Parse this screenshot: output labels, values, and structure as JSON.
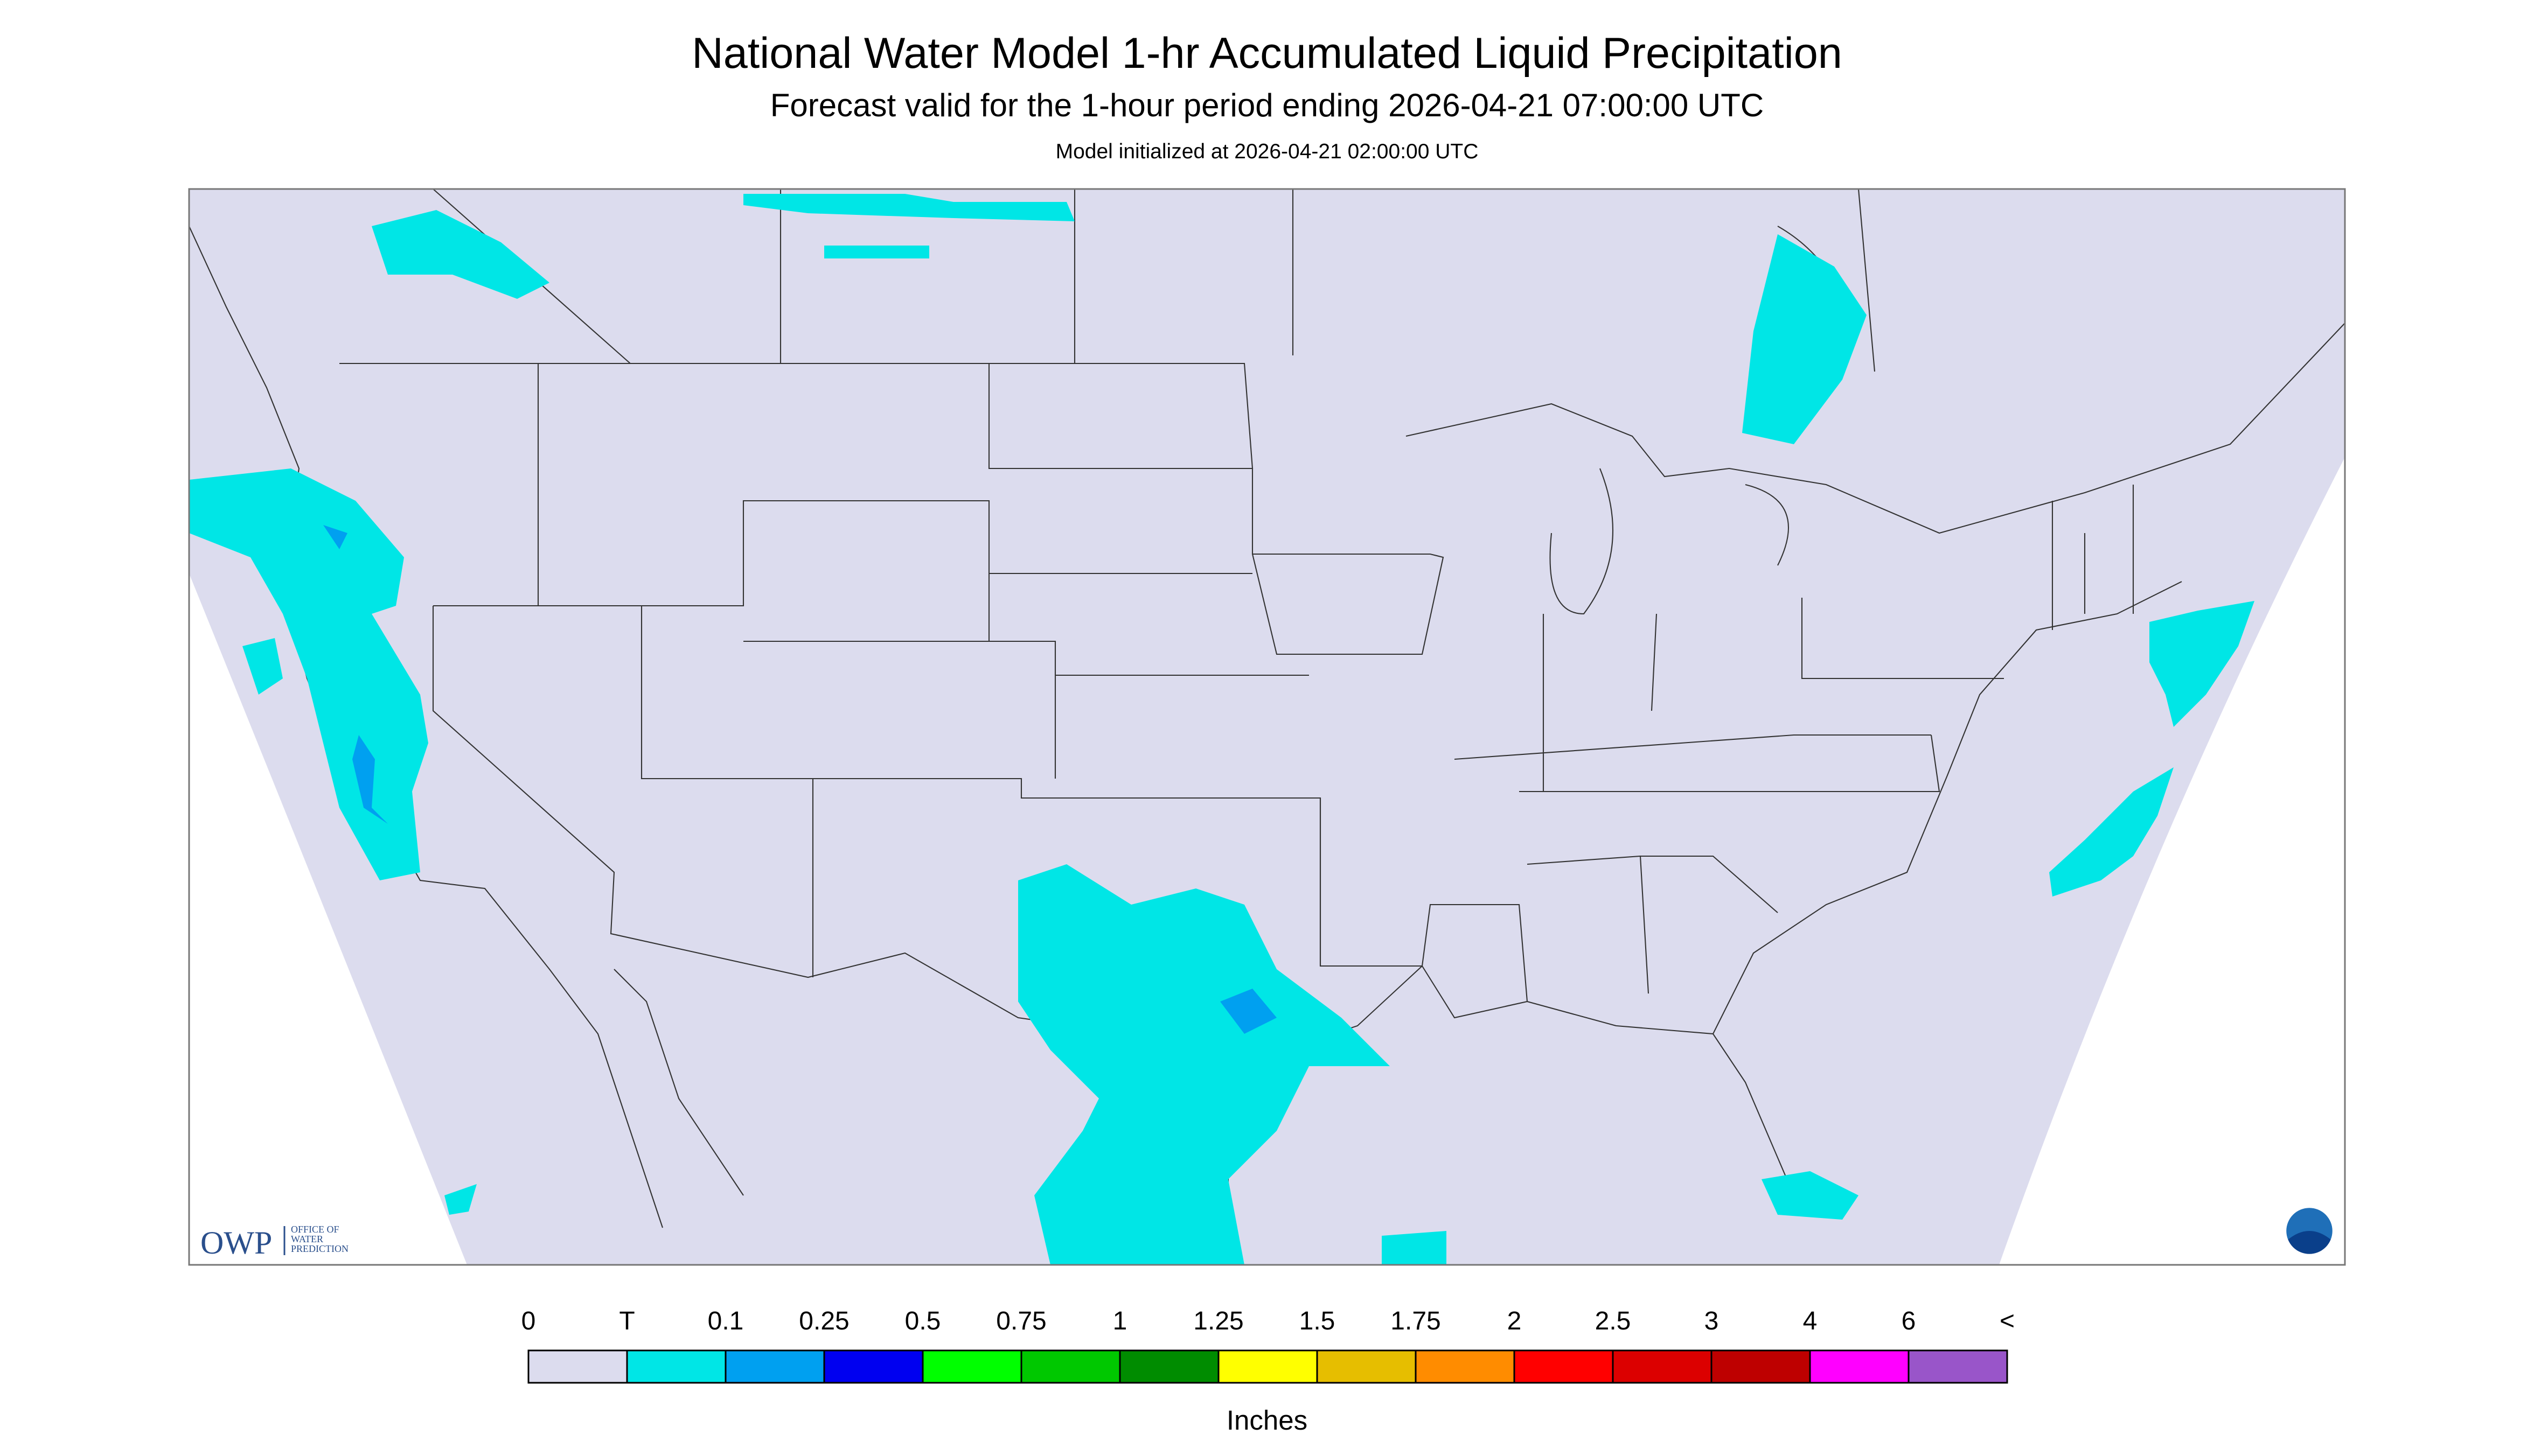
{
  "header": {
    "title": "National Water Model 1-hr Accumulated Liquid Precipitation",
    "subtitle": "Forecast valid for the 1-hour period ending 2026-04-21 07:00:00 UTC",
    "initialized": "Model initialized at 2026-04-21 02:00:00 UTC"
  },
  "logo": {
    "abbr": "OWP",
    "lines": [
      "OFFICE OF",
      "WATER",
      "PREDICTION"
    ]
  },
  "legend": {
    "labels": [
      "0",
      "T",
      "0.1",
      "0.25",
      "0.5",
      "0.75",
      "1",
      "1.25",
      "1.5",
      "1.75",
      "2",
      "2.5",
      "3",
      "4",
      "6",
      "<"
    ],
    "colors": [
      "#dcdcee",
      "#00e6e6",
      "#00a0f0",
      "#0000f0",
      "#00ff00",
      "#00c800",
      "#008c00",
      "#ffff00",
      "#e6be00",
      "#ff8c00",
      "#ff0000",
      "#dc0000",
      "#be0000",
      "#ff00ff",
      "#9955c9"
    ],
    "unit": "Inches"
  }
}
